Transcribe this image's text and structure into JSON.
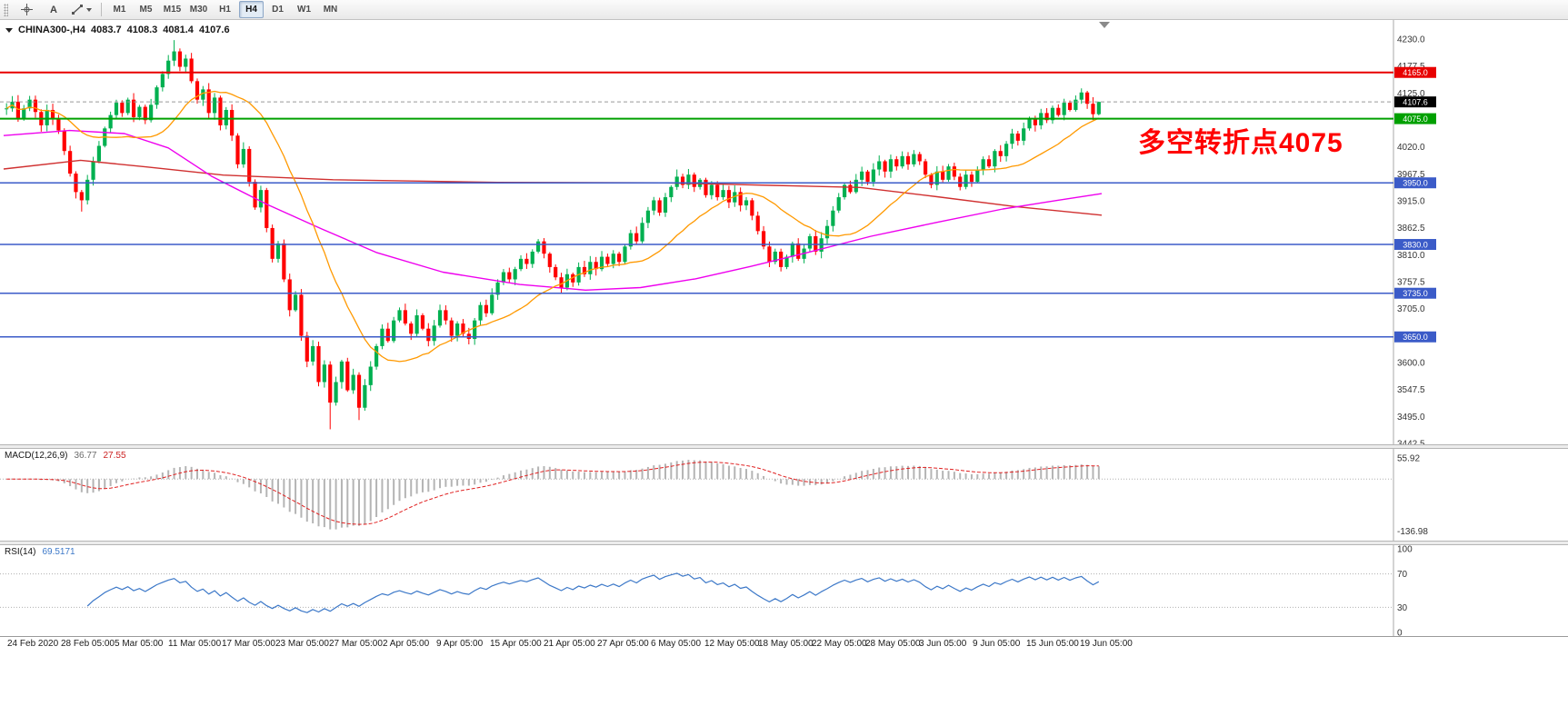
{
  "toolbar": {
    "tools": {
      "text_label": "A"
    },
    "timeframes": [
      "M1",
      "M5",
      "M15",
      "M30",
      "H1",
      "H4",
      "D1",
      "W1",
      "MN"
    ],
    "active_timeframe": "H4"
  },
  "chart": {
    "annotation": {
      "text": "多空转折点4075",
      "color": "#FF0000"
    }
  },
  "chart_data": {
    "type": "candlestick",
    "title": "CHINA300-,H4",
    "symbol": "CHINA300-",
    "period": "H4",
    "ohlc_display": {
      "open": "4083.7",
      "high": "4108.3",
      "low": "4081.4",
      "close": "4107.6"
    },
    "y_range": [
      3442.5,
      4230.0
    ],
    "price_tick_labels": [
      "4230.0",
      "4177.5",
      "4125.0",
      "4072.5",
      "4020.0",
      "3967.5",
      "3915.0",
      "3862.5",
      "3810.0",
      "3757.5",
      "3705.0",
      "3652.5",
      "3600.0",
      "3547.5",
      "3495.0",
      "3442.5"
    ],
    "time_tick_labels": [
      "24 Feb 2020",
      "28 Feb 05:00",
      "5 Mar 05:00",
      "11 Mar 05:00",
      "17 Mar 05:00",
      "23 Mar 05:00",
      "27 Mar 05:00",
      "2 Apr 05:00",
      "9 Apr 05:00",
      "15 Apr 05:00",
      "21 Apr 05:00",
      "27 Apr 05:00",
      "6 May 05:00",
      "12 May 05:00",
      "18 May 05:00",
      "22 May 05:00",
      "28 May 05:00",
      "3 Jun 05:00",
      "9 Jun 05:00",
      "15 Jun 05:00",
      "19 Jun 05:00"
    ],
    "open_first": 4095,
    "closes": [
      4095,
      4108,
      4076,
      4095,
      4112,
      4088,
      4062,
      4092,
      4075,
      4052,
      4012,
      3968,
      3932,
      3916,
      3956,
      3992,
      4022,
      4056,
      4082,
      4106,
      4086,
      4112,
      4078,
      4098,
      4072,
      4102,
      4136,
      4162,
      4188,
      4206,
      4176,
      4192,
      4148,
      4112,
      4132,
      4086,
      4116,
      4062,
      4092,
      4042,
      3986,
      4016,
      3952,
      3902,
      3936,
      3862,
      3802,
      3832,
      3762,
      3702,
      3732,
      3652,
      3602,
      3632,
      3562,
      3596,
      3522,
      3562,
      3602,
      3546,
      3576,
      3512,
      3556,
      3592,
      3632,
      3666,
      3642,
      3682,
      3702,
      3676,
      3656,
      3692,
      3666,
      3642,
      3672,
      3702,
      3682,
      3652,
      3676,
      3656,
      3646,
      3682,
      3712,
      3696,
      3732,
      3756,
      3776,
      3762,
      3782,
      3802,
      3792,
      3816,
      3836,
      3812,
      3786,
      3766,
      3746,
      3772,
      3756,
      3786,
      3772,
      3796,
      3782,
      3806,
      3792,
      3812,
      3796,
      3826,
      3852,
      3836,
      3872,
      3896,
      3916,
      3892,
      3922,
      3942,
      3962,
      3946,
      3966,
      3942,
      3956,
      3926,
      3946,
      3922,
      3936,
      3912,
      3932,
      3906,
      3916,
      3886,
      3856,
      3826,
      3796,
      3816,
      3786,
      3806,
      3832,
      3802,
      3822,
      3846,
      3816,
      3842,
      3866,
      3896,
      3922,
      3946,
      3932,
      3956,
      3972,
      3952,
      3976,
      3992,
      3972,
      3996,
      3982,
      4002,
      3986,
      4006,
      3992,
      3966,
      3946,
      3972,
      3956,
      3982,
      3962,
      3942,
      3966,
      3952,
      3976,
      3996,
      3982,
      4012,
      4002,
      4026,
      4046,
      4032,
      4056,
      4076,
      4062,
      4086,
      4072,
      4096,
      4082,
      4106,
      4092,
      4112,
      4126,
      4104,
      4083.7,
      4107.6
    ],
    "wick_overrides": {
      "13": {
        "low": 3894
      },
      "29": {
        "high": 4228
      },
      "56": {
        "low": 3470
      },
      "61": {
        "low": 3488
      },
      "116": {
        "high": 3976
      },
      "186": {
        "high": 4134
      },
      "189": {
        "high": 4108.3,
        "low": 4081.4
      }
    },
    "colors": {
      "up": "#00B050",
      "down": "#FF0000"
    },
    "moving_averages": {
      "fast_period": 18,
      "fast_color": "#FF9900",
      "mid_color": "#EE00EE",
      "slow_color": "#D03030",
      "mid_anchors": [
        [
          0,
          4042
        ],
        [
          0.06,
          4052
        ],
        [
          0.11,
          4046
        ],
        [
          0.15,
          4018
        ],
        [
          0.19,
          3962
        ],
        [
          0.24,
          3908
        ],
        [
          0.29,
          3860
        ],
        [
          0.34,
          3814
        ],
        [
          0.4,
          3776
        ],
        [
          0.47,
          3752
        ],
        [
          0.53,
          3741
        ],
        [
          0.58,
          3746
        ],
        [
          0.63,
          3763
        ],
        [
          0.68,
          3787
        ],
        [
          0.73,
          3813
        ],
        [
          0.79,
          3846
        ],
        [
          0.85,
          3873
        ],
        [
          0.91,
          3899
        ],
        [
          0.96,
          3916
        ],
        [
          1,
          3929
        ]
      ],
      "slow_anchors": [
        [
          0,
          3977
        ],
        [
          0.07,
          3994
        ],
        [
          0.13,
          3981
        ],
        [
          0.2,
          3965
        ],
        [
          0.3,
          3956
        ],
        [
          0.45,
          3951
        ],
        [
          0.6,
          3950
        ],
        [
          0.7,
          3945
        ],
        [
          0.78,
          3941
        ],
        [
          0.85,
          3923
        ],
        [
          0.92,
          3904
        ],
        [
          1,
          3887
        ]
      ]
    },
    "horizontal_levels": [
      {
        "value": 4165.0,
        "label": "4165.0",
        "color": "#E80000",
        "width": 2
      },
      {
        "value": 4075.0,
        "label": "4075.0",
        "color": "#00A000",
        "width": 2
      },
      {
        "value": 3950.0,
        "label": "3950.0",
        "color": "#3B5BC8",
        "width": 1.5
      },
      {
        "value": 3830.0,
        "label": "3830.0",
        "color": "#3B5BC8",
        "width": 1.5
      },
      {
        "value": 3735.0,
        "label": "3735.0",
        "color": "#3B5BC8",
        "width": 1.5
      },
      {
        "value": 3650.0,
        "label": "3650.0",
        "color": "#3B5BC8",
        "width": 1.5
      }
    ],
    "current_price": {
      "value": 4107.6,
      "label": "4107.6",
      "box_color": "#000000"
    }
  },
  "macd": {
    "label": "MACD(12,26,9)",
    "value_main": "36.77",
    "value_signal": "27.55",
    "axis_max": 55.92,
    "axis_min": -136.98,
    "axis_max_label": "55.92",
    "axis_min_label": "-136.98",
    "fast": 12,
    "slow": 26,
    "signal": 9,
    "histogram_color": "#b4b4b4",
    "signal_color": "#E02020"
  },
  "rsi": {
    "label": "RSI(14)",
    "value": "69.5171",
    "period": 14,
    "axis_labels": [
      "100",
      "70",
      "30",
      "0"
    ],
    "level_lines": [
      70,
      30
    ],
    "line_color": "#3C78C8"
  }
}
